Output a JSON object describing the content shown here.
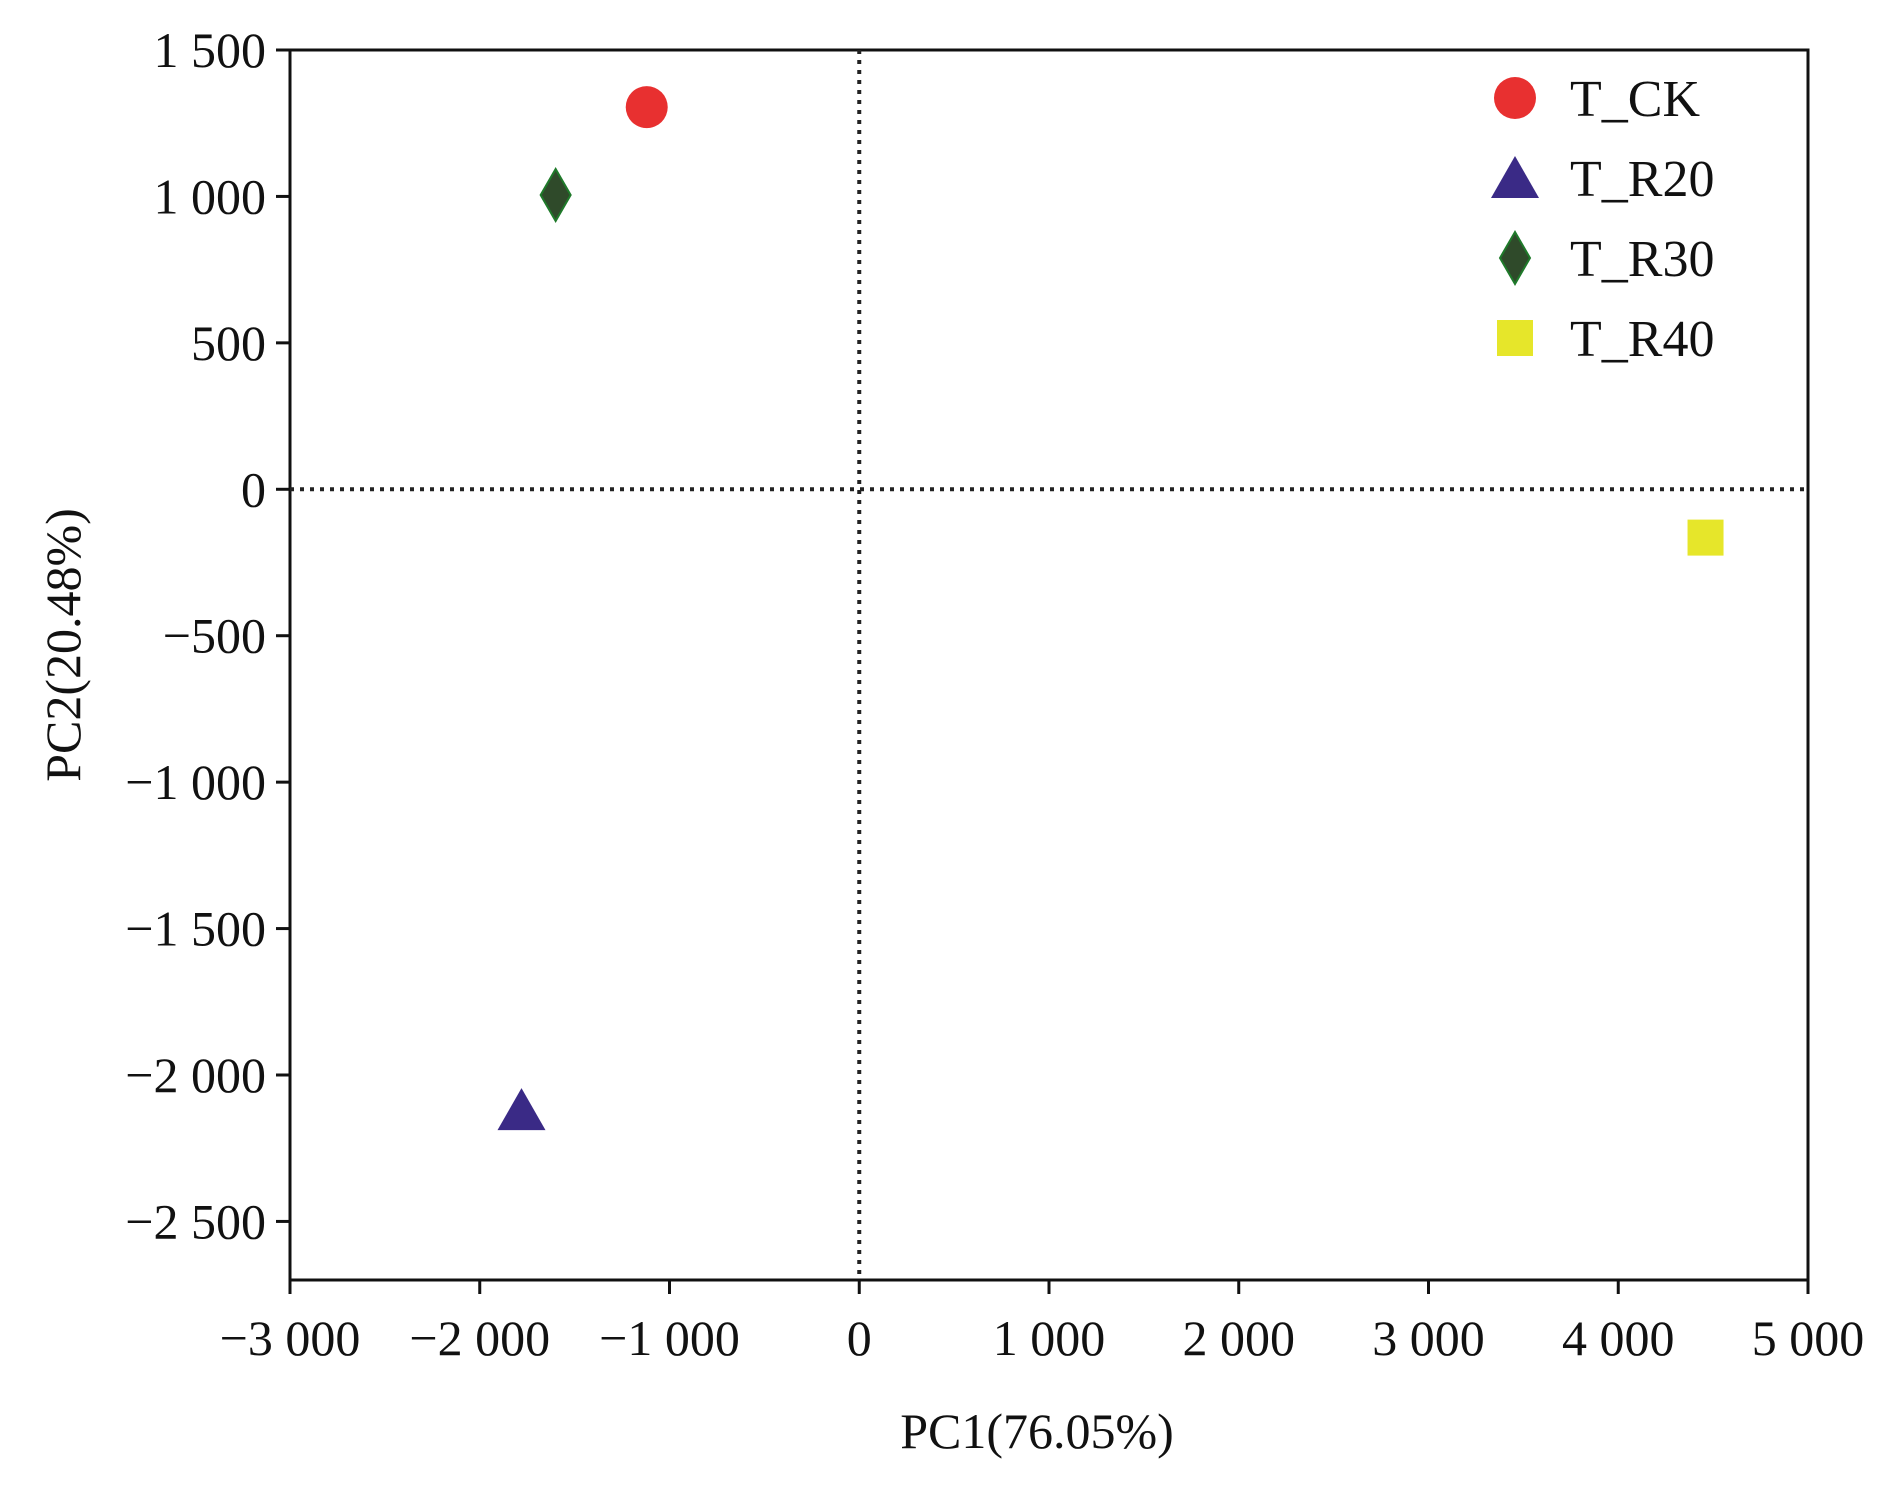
{
  "chart_data": {
    "type": "scatter",
    "title": "",
    "xlabel": "PC1(76.05%)",
    "ylabel": "PC2(20.48%)",
    "xlim": [
      -3000,
      5000
    ],
    "ylim": [
      -2700,
      1500
    ],
    "x_ticks": [
      {
        "value": -3000,
        "label": "−3 000"
      },
      {
        "value": -2000,
        "label": "−2 000"
      },
      {
        "value": -1000,
        "label": "−1 000"
      },
      {
        "value": 0,
        "label": "0"
      },
      {
        "value": 1000,
        "label": "1 000"
      },
      {
        "value": 2000,
        "label": "2 000"
      },
      {
        "value": 3000,
        "label": "3 000"
      },
      {
        "value": 4000,
        "label": "4 000"
      },
      {
        "value": 5000,
        "label": "5 000"
      }
    ],
    "y_ticks": [
      {
        "value": 1500,
        "label": "1 500"
      },
      {
        "value": 1000,
        "label": "1 000"
      },
      {
        "value": 500,
        "label": "500"
      },
      {
        "value": 0,
        "label": "0"
      },
      {
        "value": -500,
        "label": "−500"
      },
      {
        "value": -1000,
        "label": "−1 000"
      },
      {
        "value": -1500,
        "label": "−1 500"
      },
      {
        "value": -2000,
        "label": "−2 000"
      },
      {
        "value": -2500,
        "label": "−2 500"
      }
    ],
    "reference_lines": {
      "x": 0,
      "y": 0,
      "style": "dotted"
    },
    "grid": false,
    "legend_position": "top-right",
    "series": [
      {
        "name": "T_CK",
        "marker": "circle",
        "color": "#e83030",
        "points": [
          [
            -1120,
            1305
          ]
        ]
      },
      {
        "name": "T_R20",
        "marker": "triangle",
        "color": "#3a2a86",
        "points": [
          [
            -1780,
            -2120
          ]
        ]
      },
      {
        "name": "T_R30",
        "marker": "diamond",
        "color": "#2f4a2a",
        "points": [
          [
            -1600,
            1005
          ]
        ]
      },
      {
        "name": "T_R40",
        "marker": "square",
        "color": "#e6e62a",
        "points": [
          [
            4460,
            -165
          ]
        ]
      }
    ]
  }
}
